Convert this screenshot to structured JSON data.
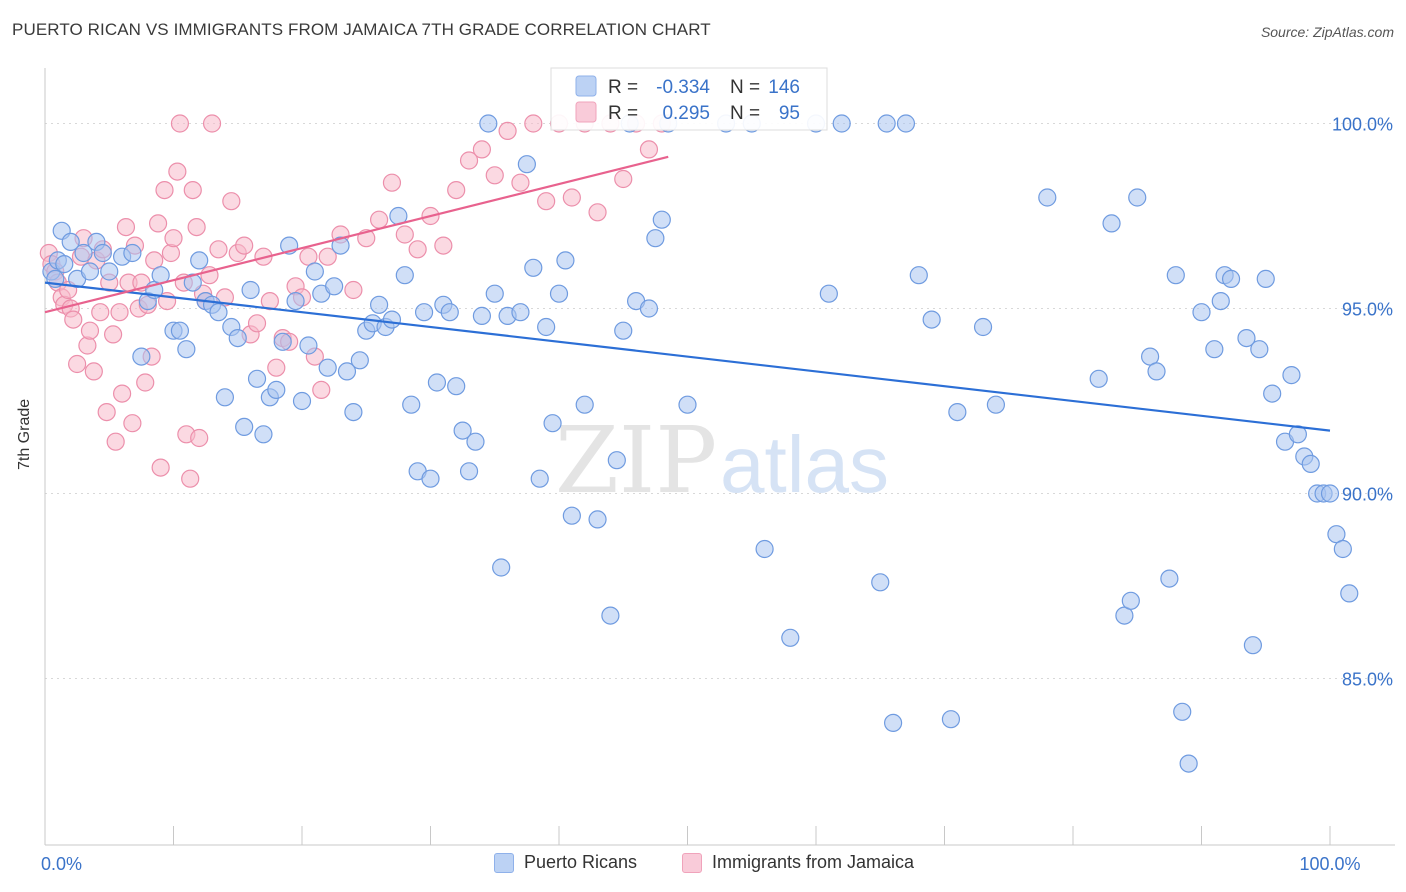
{
  "title": "PUERTO RICAN VS IMMIGRANTS FROM JAMAICA 7TH GRADE CORRELATION CHART",
  "source": "Source: ZipAtlas.com",
  "watermark": {
    "zip": "ZIP",
    "atlas": "atlas"
  },
  "colors": {
    "blue_fill": "#a9c4f0",
    "blue_stroke": "#6f9be0",
    "blue_line": "#2c6fd6",
    "pink_fill": "#f7b9cb",
    "pink_stroke": "#ec8fab",
    "pink_line": "#e8628e",
    "axis_text": "#3a73c9",
    "grid": "#d8d8d8"
  },
  "legend_top": [
    {
      "r_label": "R =",
      "r_value": "-0.334",
      "n_label": "N =",
      "n_value": "146",
      "series": "blue"
    },
    {
      "r_label": "R =",
      "r_value": "0.295",
      "n_label": "N =",
      "n_value": "95",
      "series": "pink"
    }
  ],
  "legend_bottom": [
    {
      "label": "Puerto Ricans",
      "series": "blue"
    },
    {
      "label": "Immigrants from Jamaica",
      "series": "pink"
    }
  ],
  "chart_data": {
    "type": "scatter",
    "title": "PUERTO RICAN VS IMMIGRANTS FROM JAMAICA 7TH GRADE CORRELATION CHART",
    "xlabel": "",
    "ylabel": "7th Grade",
    "xlim": [
      0,
      100
    ],
    "ylim": [
      80.5,
      101.5
    ],
    "x_tick_labels": [
      {
        "value": 0,
        "label": "0.0%"
      },
      {
        "value": 100,
        "label": "100.0%"
      }
    ],
    "y_tick_labels": [
      {
        "value": 100,
        "label": "100.0%"
      },
      {
        "value": 95,
        "label": "95.0%"
      },
      {
        "value": 90,
        "label": "90.0%"
      },
      {
        "value": 85,
        "label": "85.0%"
      }
    ],
    "series": [
      {
        "name": "Puerto Ricans",
        "color": "blue",
        "trend": {
          "x": [
            0,
            100
          ],
          "y": [
            95.7,
            91.7
          ]
        },
        "points": [
          [
            0.5,
            96.0
          ],
          [
            0.8,
            95.8
          ],
          [
            1.0,
            96.3
          ],
          [
            1.3,
            97.1
          ],
          [
            1.5,
            96.2
          ],
          [
            2.0,
            96.8
          ],
          [
            2.5,
            95.8
          ],
          [
            3.0,
            96.5
          ],
          [
            3.5,
            96.0
          ],
          [
            4.0,
            96.8
          ],
          [
            4.5,
            96.5
          ],
          [
            5.0,
            96.0
          ],
          [
            6.0,
            96.4
          ],
          [
            6.8,
            96.5
          ],
          [
            7.5,
            93.7
          ],
          [
            8.0,
            95.2
          ],
          [
            8.5,
            95.5
          ],
          [
            9.0,
            95.9
          ],
          [
            10.0,
            94.4
          ],
          [
            10.5,
            94.4
          ],
          [
            11.0,
            93.9
          ],
          [
            11.5,
            95.7
          ],
          [
            12.0,
            96.3
          ],
          [
            12.5,
            95.2
          ],
          [
            13.0,
            95.1
          ],
          [
            13.5,
            94.9
          ],
          [
            14.0,
            92.6
          ],
          [
            14.5,
            94.5
          ],
          [
            15.0,
            94.2
          ],
          [
            15.5,
            91.8
          ],
          [
            16.0,
            95.5
          ],
          [
            16.5,
            93.1
          ],
          [
            17.0,
            91.6
          ],
          [
            17.5,
            92.6
          ],
          [
            18.0,
            92.8
          ],
          [
            18.5,
            94.1
          ],
          [
            19.0,
            96.7
          ],
          [
            19.5,
            95.2
          ],
          [
            20.0,
            92.5
          ],
          [
            20.5,
            94.0
          ],
          [
            21.0,
            96.0
          ],
          [
            21.5,
            95.4
          ],
          [
            22.0,
            93.4
          ],
          [
            22.5,
            95.6
          ],
          [
            23.0,
            96.7
          ],
          [
            23.5,
            93.3
          ],
          [
            24.0,
            92.2
          ],
          [
            24.5,
            93.6
          ],
          [
            25.0,
            94.4
          ],
          [
            25.5,
            94.6
          ],
          [
            26.0,
            95.1
          ],
          [
            26.5,
            94.5
          ],
          [
            27.0,
            94.7
          ],
          [
            27.5,
            97.5
          ],
          [
            28.0,
            95.9
          ],
          [
            28.5,
            92.4
          ],
          [
            29.0,
            90.6
          ],
          [
            29.5,
            94.9
          ],
          [
            30.0,
            90.4
          ],
          [
            30.5,
            93.0
          ],
          [
            31.0,
            95.1
          ],
          [
            31.5,
            94.9
          ],
          [
            32.0,
            92.9
          ],
          [
            32.5,
            91.7
          ],
          [
            33.0,
            90.6
          ],
          [
            33.5,
            91.4
          ],
          [
            34.0,
            94.8
          ],
          [
            34.5,
            100.0
          ],
          [
            35.0,
            95.4
          ],
          [
            35.5,
            88.0
          ],
          [
            36.0,
            94.8
          ],
          [
            37.0,
            94.9
          ],
          [
            37.5,
            98.9
          ],
          [
            38.0,
            96.1
          ],
          [
            38.5,
            90.4
          ],
          [
            39.0,
            94.5
          ],
          [
            39.5,
            91.9
          ],
          [
            40.0,
            95.4
          ],
          [
            40.5,
            96.3
          ],
          [
            41.0,
            89.4
          ],
          [
            42.0,
            92.4
          ],
          [
            43.0,
            89.3
          ],
          [
            44.0,
            86.7
          ],
          [
            44.5,
            90.9
          ],
          [
            45.0,
            94.4
          ],
          [
            45.5,
            100.0
          ],
          [
            46.0,
            95.2
          ],
          [
            47.0,
            95.0
          ],
          [
            47.5,
            96.9
          ],
          [
            48.0,
            97.4
          ],
          [
            48.5,
            100.0
          ],
          [
            50.0,
            92.4
          ],
          [
            53.0,
            100.0
          ],
          [
            55.0,
            100.0
          ],
          [
            56.0,
            88.5
          ],
          [
            58.0,
            86.1
          ],
          [
            60.0,
            100.0
          ],
          [
            61.0,
            95.4
          ],
          [
            62.0,
            100.0
          ],
          [
            65.0,
            87.6
          ],
          [
            65.5,
            100.0
          ],
          [
            66.0,
            83.8
          ],
          [
            67.0,
            100.0
          ],
          [
            68.0,
            95.9
          ],
          [
            69.0,
            94.7
          ],
          [
            70.5,
            83.9
          ],
          [
            71.0,
            92.2
          ],
          [
            73.0,
            94.5
          ],
          [
            74.0,
            92.4
          ],
          [
            78.0,
            98.0
          ],
          [
            82.0,
            93.1
          ],
          [
            83.0,
            97.3
          ],
          [
            84.0,
            86.7
          ],
          [
            84.5,
            87.1
          ],
          [
            85.0,
            98.0
          ],
          [
            86.0,
            93.7
          ],
          [
            86.5,
            93.3
          ],
          [
            87.5,
            87.7
          ],
          [
            88.0,
            95.9
          ],
          [
            88.5,
            84.1
          ],
          [
            89.0,
            82.7
          ],
          [
            90.0,
            94.9
          ],
          [
            91.0,
            93.9
          ],
          [
            91.5,
            95.2
          ],
          [
            91.8,
            95.9
          ],
          [
            92.3,
            95.8
          ],
          [
            93.5,
            94.2
          ],
          [
            94.0,
            85.9
          ],
          [
            94.5,
            93.9
          ],
          [
            95.0,
            95.8
          ],
          [
            95.5,
            92.7
          ],
          [
            96.5,
            91.4
          ],
          [
            97.0,
            93.2
          ],
          [
            97.5,
            91.6
          ],
          [
            98.0,
            91.0
          ],
          [
            98.5,
            90.8
          ],
          [
            99.0,
            90.0
          ],
          [
            99.5,
            90.0
          ],
          [
            100.0,
            90.0
          ],
          [
            100.5,
            88.9
          ],
          [
            101.0,
            88.5
          ],
          [
            101.5,
            87.3
          ]
        ]
      },
      {
        "name": "Immigrants from Jamaica",
        "color": "pink",
        "trend": {
          "x": [
            0,
            48.5
          ],
          "y": [
            94.9,
            99.1
          ]
        },
        "points": [
          [
            0.3,
            96.5
          ],
          [
            0.5,
            96.2
          ],
          [
            0.8,
            96.0
          ],
          [
            1.0,
            95.7
          ],
          [
            1.3,
            95.3
          ],
          [
            1.5,
            95.1
          ],
          [
            1.8,
            95.5
          ],
          [
            2.0,
            95.0
          ],
          [
            2.2,
            94.7
          ],
          [
            2.5,
            93.5
          ],
          [
            2.8,
            96.4
          ],
          [
            3.0,
            96.9
          ],
          [
            3.3,
            94.0
          ],
          [
            3.5,
            94.4
          ],
          [
            3.8,
            93.3
          ],
          [
            4.0,
            96.3
          ],
          [
            4.3,
            94.9
          ],
          [
            4.5,
            96.6
          ],
          [
            4.8,
            92.2
          ],
          [
            5.0,
            95.7
          ],
          [
            5.3,
            94.3
          ],
          [
            5.5,
            91.4
          ],
          [
            5.8,
            94.9
          ],
          [
            6.0,
            92.7
          ],
          [
            6.3,
            97.2
          ],
          [
            6.5,
            95.7
          ],
          [
            6.8,
            91.9
          ],
          [
            7.0,
            96.7
          ],
          [
            7.3,
            95.0
          ],
          [
            7.5,
            95.7
          ],
          [
            7.8,
            93.0
          ],
          [
            8.0,
            95.1
          ],
          [
            8.3,
            93.7
          ],
          [
            8.5,
            96.3
          ],
          [
            8.8,
            97.3
          ],
          [
            9.0,
            90.7
          ],
          [
            9.3,
            98.2
          ],
          [
            9.5,
            95.2
          ],
          [
            9.8,
            96.5
          ],
          [
            10.0,
            96.9
          ],
          [
            10.3,
            98.7
          ],
          [
            10.5,
            100.0
          ],
          [
            10.8,
            95.7
          ],
          [
            11.0,
            91.6
          ],
          [
            11.3,
            90.4
          ],
          [
            11.5,
            98.2
          ],
          [
            11.8,
            97.2
          ],
          [
            12.0,
            91.5
          ],
          [
            12.3,
            95.4
          ],
          [
            12.5,
            95.2
          ],
          [
            12.8,
            95.9
          ],
          [
            13.0,
            100.0
          ],
          [
            13.5,
            96.6
          ],
          [
            14.0,
            95.3
          ],
          [
            14.5,
            97.9
          ],
          [
            15.0,
            96.5
          ],
          [
            15.5,
            96.7
          ],
          [
            16.0,
            94.3
          ],
          [
            16.5,
            94.6
          ],
          [
            17.0,
            96.4
          ],
          [
            17.5,
            95.2
          ],
          [
            18.0,
            93.4
          ],
          [
            18.5,
            94.2
          ],
          [
            19.0,
            94.1
          ],
          [
            19.5,
            95.6
          ],
          [
            20.0,
            95.3
          ],
          [
            20.5,
            96.4
          ],
          [
            21.0,
            93.7
          ],
          [
            21.5,
            92.8
          ],
          [
            22.0,
            96.4
          ],
          [
            23.0,
            97.0
          ],
          [
            24.0,
            95.5
          ],
          [
            25.0,
            96.9
          ],
          [
            26.0,
            97.4
          ],
          [
            27.0,
            98.4
          ],
          [
            28.0,
            97.0
          ],
          [
            29.0,
            96.6
          ],
          [
            30.0,
            97.5
          ],
          [
            31.0,
            96.7
          ],
          [
            32.0,
            98.2
          ],
          [
            33.0,
            99.0
          ],
          [
            34.0,
            99.3
          ],
          [
            35.0,
            98.6
          ],
          [
            36.0,
            99.8
          ],
          [
            37.0,
            98.4
          ],
          [
            38.0,
            100.0
          ],
          [
            39.0,
            97.9
          ],
          [
            40.0,
            100.0
          ],
          [
            41.0,
            98.0
          ],
          [
            42.0,
            100.0
          ],
          [
            43.0,
            97.6
          ],
          [
            44.0,
            100.0
          ],
          [
            45.0,
            98.5
          ],
          [
            46.0,
            100.0
          ],
          [
            47.0,
            99.3
          ],
          [
            48.0,
            100.0
          ]
        ]
      }
    ]
  }
}
